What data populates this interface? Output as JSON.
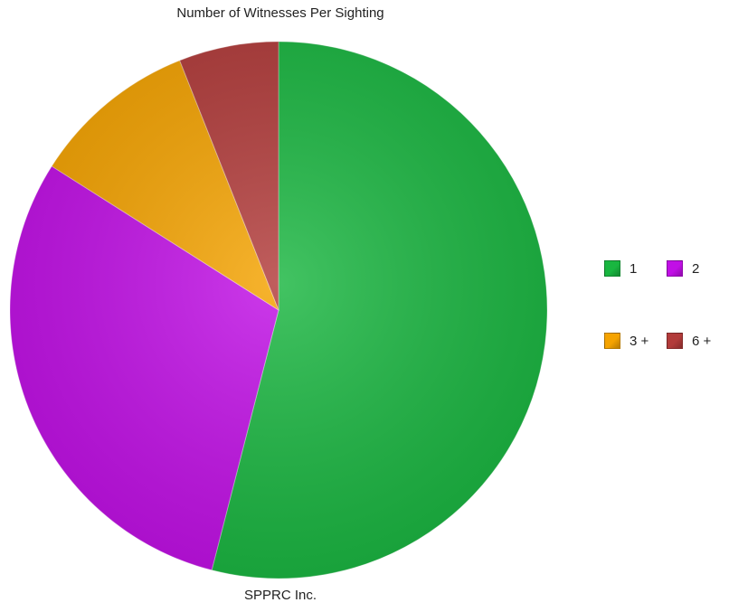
{
  "chart_data": {
    "type": "pie",
    "title": "Number of Witnesses Per Sighting",
    "footer": "SPPRC Inc.",
    "legend_position": "right",
    "slices": [
      {
        "label": "1",
        "value": 54,
        "color": "#19b640"
      },
      {
        "label": "2",
        "value": 30,
        "color": "#c10fe6"
      },
      {
        "label": "3 +",
        "value": 10,
        "color": "#f5a300"
      },
      {
        "label": "6 +",
        "value": 6,
        "color": "#b23b3a"
      }
    ],
    "legend_rows": [
      [
        "1",
        "2"
      ],
      [
        "3 +",
        "6 +"
      ]
    ]
  }
}
